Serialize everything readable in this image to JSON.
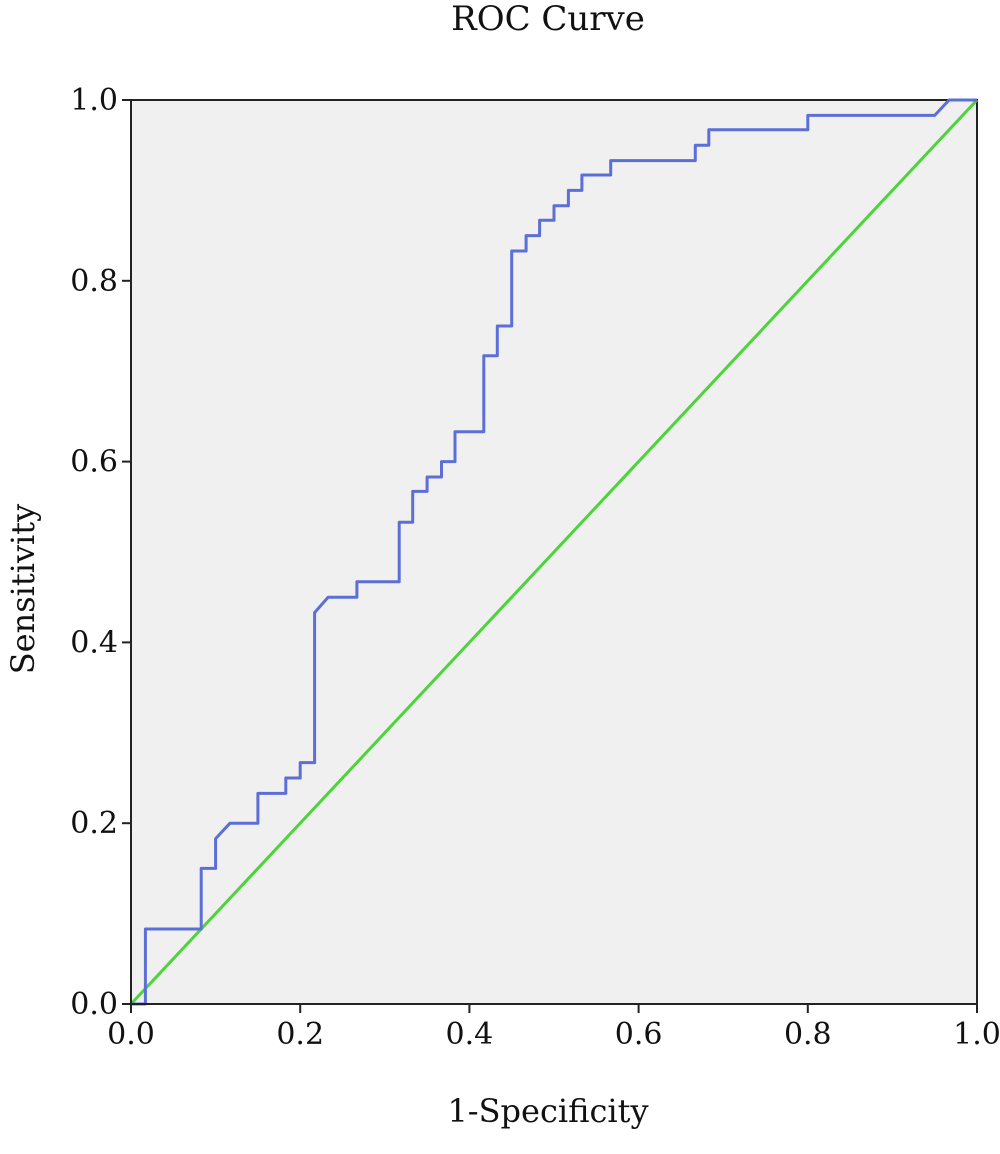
{
  "chart_data": {
    "type": "line",
    "title": "ROC Curve",
    "xlabel": "1-Specificity",
    "ylabel": "Sensitivity",
    "xlim": [
      0.0,
      1.0
    ],
    "ylim": [
      0.0,
      1.0
    ],
    "x_ticks": [
      "0.0",
      "0.2",
      "0.4",
      "0.6",
      "0.8",
      "1.0"
    ],
    "y_ticks": [
      "0.0",
      "0.2",
      "0.4",
      "0.6",
      "0.8",
      "1.0"
    ],
    "x_tick_values": [
      0.0,
      0.2,
      0.4,
      0.6,
      0.8,
      1.0
    ],
    "y_tick_values": [
      0.0,
      0.2,
      0.4,
      0.6,
      0.8,
      1.0
    ],
    "grid": false,
    "plot_background": "#f0f0f0",
    "series": [
      {
        "color": "#5b6fd6",
        "x": [
          0.0,
          0.017,
          0.017,
          0.083,
          0.083,
          0.1,
          0.1,
          0.117,
          0.15,
          0.15,
          0.183,
          0.183,
          0.2,
          0.2,
          0.217,
          0.217,
          0.233,
          0.267,
          0.267,
          0.317,
          0.317,
          0.333,
          0.333,
          0.35,
          0.35,
          0.367,
          0.367,
          0.383,
          0.383,
          0.417,
          0.417,
          0.433,
          0.433,
          0.45,
          0.45,
          0.467,
          0.467,
          0.483,
          0.483,
          0.5,
          0.5,
          0.517,
          0.517,
          0.533,
          0.533,
          0.567,
          0.567,
          0.667,
          0.667,
          0.683,
          0.683,
          0.8,
          0.8,
          0.95,
          0.967,
          1.0
        ],
        "y": [
          0.0,
          0.0,
          0.083,
          0.083,
          0.15,
          0.15,
          0.183,
          0.2,
          0.2,
          0.233,
          0.233,
          0.25,
          0.25,
          0.267,
          0.267,
          0.433,
          0.45,
          0.45,
          0.467,
          0.467,
          0.533,
          0.533,
          0.567,
          0.567,
          0.583,
          0.583,
          0.6,
          0.6,
          0.633,
          0.633,
          0.717,
          0.717,
          0.75,
          0.75,
          0.833,
          0.833,
          0.85,
          0.85,
          0.867,
          0.867,
          0.883,
          0.883,
          0.9,
          0.9,
          0.917,
          0.917,
          0.933,
          0.933,
          0.95,
          0.95,
          0.967,
          0.967,
          0.983,
          0.983,
          1.0,
          1.0
        ]
      },
      {
        "color": "#4cd43a",
        "x": [
          0.0,
          1.0
        ],
        "y": [
          0.0,
          1.0
        ]
      }
    ]
  }
}
